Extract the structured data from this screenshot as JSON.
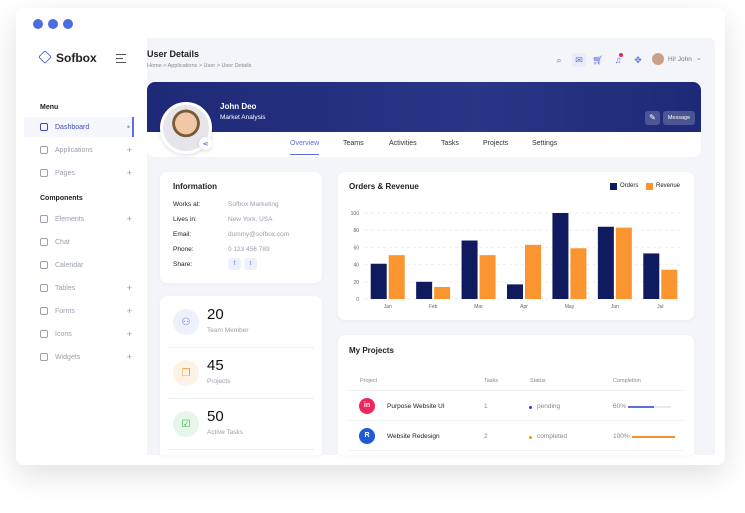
{
  "window": {
    "dots": 3
  },
  "brand": {
    "name": "Sofbox"
  },
  "sidebar": {
    "menu_label": "Menu",
    "components_label": "Components",
    "menu_items": [
      {
        "label": "Dashboard",
        "icon": "home-icon",
        "active": true,
        "suffix": "•"
      },
      {
        "label": "Applications",
        "icon": "clipboard-icon",
        "suffix": "+"
      },
      {
        "label": "Pages",
        "icon": "pages-icon",
        "suffix": "+"
      }
    ],
    "component_items": [
      {
        "label": "Elements",
        "icon": "grid-icon",
        "suffix": "+"
      },
      {
        "label": "Chat",
        "icon": "chat-icon",
        "suffix": ""
      },
      {
        "label": "Calendar",
        "icon": "calendar-icon",
        "suffix": ""
      },
      {
        "label": "Tables",
        "icon": "table-icon",
        "suffix": "+"
      },
      {
        "label": "Forms",
        "icon": "form-icon",
        "suffix": "+"
      },
      {
        "label": "Icons",
        "icon": "info-icon",
        "suffix": "+"
      },
      {
        "label": "Widgets",
        "icon": "widget-icon",
        "suffix": "+"
      }
    ]
  },
  "header": {
    "title": "User Details",
    "breadcrumb": "Home > Applications > User > User Details",
    "greeting": "Hi! John",
    "icons": [
      "search-icon",
      "mail-icon",
      "cart-icon",
      "bell-icon",
      "settings-icon"
    ]
  },
  "profile": {
    "name": "John Deo",
    "role": "Market Analysis",
    "message_label": "Message",
    "tabs": [
      "Overview",
      "Teams",
      "Activities",
      "Tasks",
      "Projects",
      "Settings"
    ],
    "active_tab": "Overview",
    "banner_color": "#1e2a78"
  },
  "info": {
    "title": "Information",
    "rows": [
      {
        "label": "Works at:",
        "value": "Sofbox Marketing"
      },
      {
        "label": "Lives in:",
        "value": "New York, USA"
      },
      {
        "label": "Email:",
        "value": "dummy@sofbox.com"
      },
      {
        "label": "Phone:",
        "value": "0 123 456 789"
      }
    ],
    "share_label": "Share:"
  },
  "stats": [
    {
      "value": "20",
      "label": "Team Member",
      "color": "#5c6ee6",
      "bg": "#eef0fc",
      "icon": "users-icon"
    },
    {
      "value": "45",
      "label": "Projects",
      "color": "#f7902e",
      "bg": "#fef1e6",
      "icon": "copy-icon"
    },
    {
      "value": "50",
      "label": "Active Tasks",
      "color": "#2fb344",
      "bg": "#e6f6ea",
      "icon": "check-icon"
    }
  ],
  "chart_data": {
    "type": "bar",
    "title": "Orders & Revenue",
    "categories": [
      "Jan",
      "Feb",
      "Mar",
      "Apr",
      "May",
      "Jun",
      "Jul"
    ],
    "series": [
      {
        "name": "Orders",
        "color": "#0f1b5e",
        "values": [
          41,
          20,
          68,
          17,
          100,
          84,
          53
        ]
      },
      {
        "name": "Revenue",
        "color": "#fb952f",
        "values": [
          51,
          14,
          51,
          63,
          59,
          83,
          34
        ]
      }
    ],
    "ylim": [
      0,
      100
    ],
    "yticks": [
      "0",
      "20",
      "40",
      "60",
      "80",
      "100"
    ],
    "grid": true,
    "legend": "top-right"
  },
  "projects": {
    "title": "My Projects",
    "headers": [
      "Project",
      "Tasks",
      "Status",
      "Completion"
    ],
    "rows": [
      {
        "name": "Purpose Website UI",
        "tasks": "1",
        "status": "pending",
        "status_color": "#2b3cc7",
        "completion": "60%",
        "pct": 60,
        "bar_color": "#5c6ee6",
        "logo_bg": "#f0265a",
        "logo": "in"
      },
      {
        "name": "Website Redesign",
        "tasks": "2",
        "status": "completed",
        "status_color": "#f7902e",
        "completion": "100%",
        "pct": 100,
        "bar_color": "#f7902e",
        "logo_bg": "#1f5bd6",
        "logo": "R"
      }
    ]
  }
}
